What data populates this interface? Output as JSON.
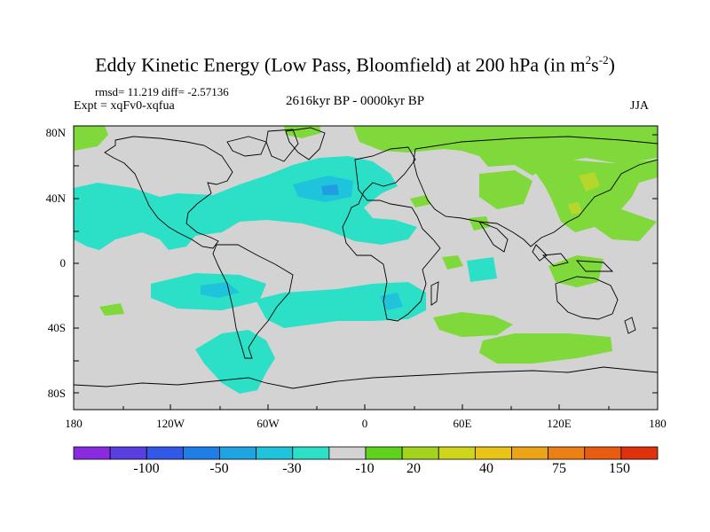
{
  "title": {
    "main": "Eddy Kinetic Energy (Low Pass, Bloomfield) at 200 hPa (in m",
    "sup1": "2",
    "mid": "s",
    "sup2": "-2",
    "close": ")"
  },
  "stats": "rmsd= 11.219 diff= -2.57136",
  "expt": "Expt = xqFv0-xqfua",
  "period": "2616kyr BP - 0000kyr BP",
  "season": "JJA",
  "y_axis": [
    "80N",
    "40N",
    "0",
    "40S",
    "80S"
  ],
  "x_axis": [
    "180",
    "120W",
    "60W",
    "0",
    "60E",
    "120E",
    "180"
  ],
  "colorbar": {
    "colors": [
      "#8a2be2",
      "#5a3ee0",
      "#3358e6",
      "#1f7fe6",
      "#1ea5e2",
      "#1fc3dc",
      "#2ce0c8",
      "#d3d3d3",
      "#5fd21e",
      "#a3d31c",
      "#cfd51a",
      "#e8c318",
      "#eca316",
      "#ec8014",
      "#e85c12",
      "#e0300e"
    ],
    "labels": [
      "-100",
      "-50",
      "-30",
      "-10",
      "20",
      "40",
      "75",
      "150"
    ]
  },
  "legend_colors": {
    "land_neutral": "#d3d3d3",
    "positive_light": "#7fd93a",
    "negative_light": "#2ce0c8",
    "negative_mid": "#1fc3dc"
  }
}
